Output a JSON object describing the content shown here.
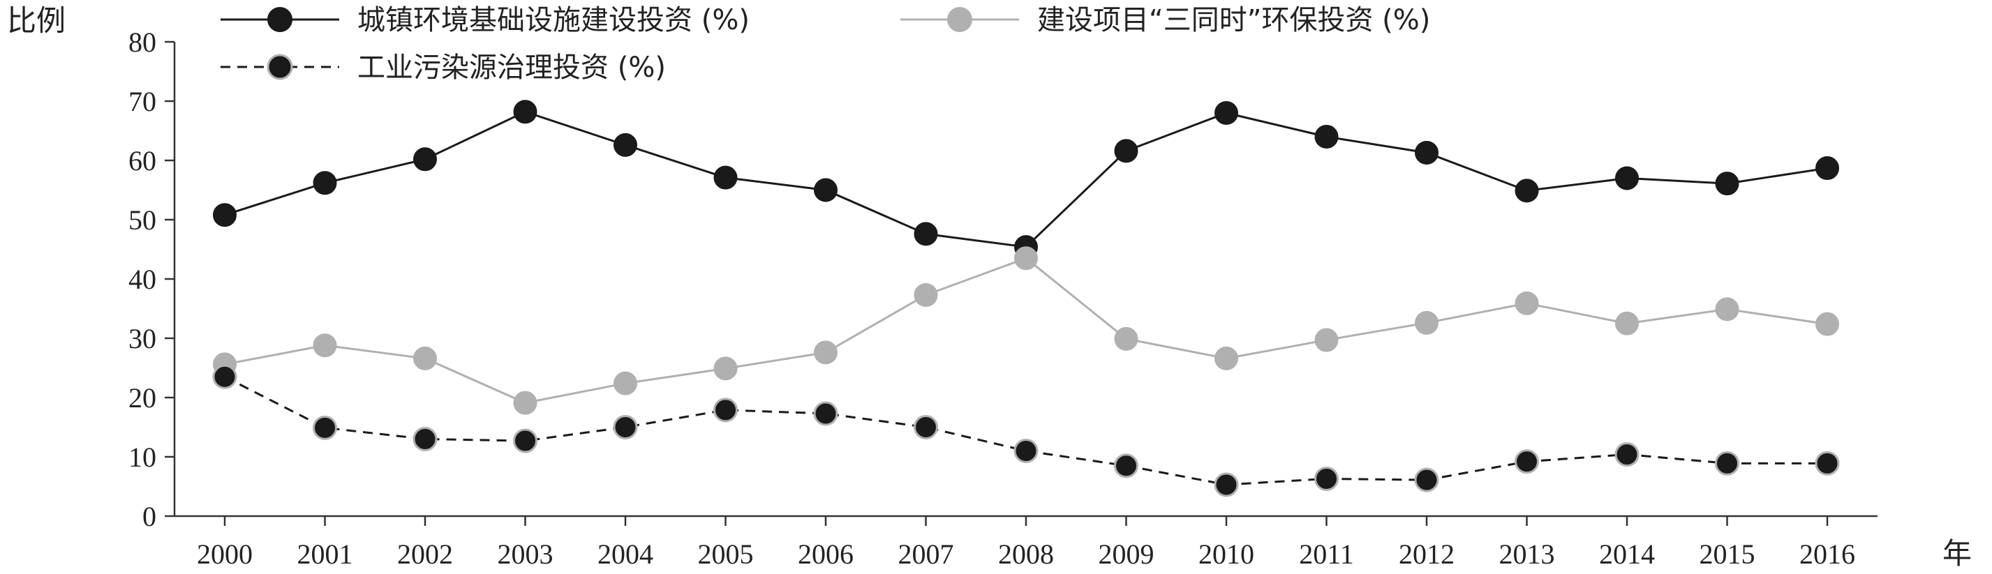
{
  "chart_data": {
    "type": "line",
    "ylabel": "比例",
    "xlabel": "年",
    "ylim": [
      0,
      80
    ],
    "yticks": [
      0,
      10,
      20,
      30,
      40,
      50,
      60,
      70,
      80
    ],
    "categories": [
      "2000",
      "2001",
      "2002",
      "2003",
      "2004",
      "2005",
      "2006",
      "2007",
      "2008",
      "2009",
      "2010",
      "2011",
      "2012",
      "2013",
      "2014",
      "2015",
      "2016"
    ],
    "legend_position": "top",
    "grid": false,
    "series": [
      {
        "name": "城镇环境基础设施建设投资 (%)",
        "color": "#1a1a1a",
        "line_style": "solid",
        "marker_fill": "#1a1a1a",
        "values": [
          50.8,
          56.2,
          60.2,
          68.2,
          62.6,
          57.1,
          55.0,
          47.6,
          45.4,
          61.6,
          68.0,
          64.0,
          61.3,
          54.9,
          57.0,
          56.1,
          58.7
        ]
      },
      {
        "name": "建设项目“三同时”环保投资 (%)",
        "color": "#b0b0b0",
        "line_style": "solid",
        "marker_fill": "#b0b0b0",
        "values": [
          25.6,
          28.8,
          26.6,
          19.1,
          22.4,
          24.9,
          27.6,
          37.3,
          43.5,
          29.9,
          26.6,
          29.7,
          32.6,
          35.9,
          32.5,
          34.9,
          32.4
        ]
      },
      {
        "name": "工业污染源治理投资 (%)",
        "color": "#1a1a1a",
        "line_style": "dashed",
        "marker_fill": "#1a1a1a",
        "marker_edge": "#b0b0b0",
        "values": [
          23.5,
          14.9,
          13.0,
          12.7,
          15.0,
          17.9,
          17.3,
          15.0,
          11.0,
          8.5,
          5.3,
          6.3,
          6.1,
          9.2,
          10.4,
          8.9,
          8.9
        ]
      }
    ]
  }
}
